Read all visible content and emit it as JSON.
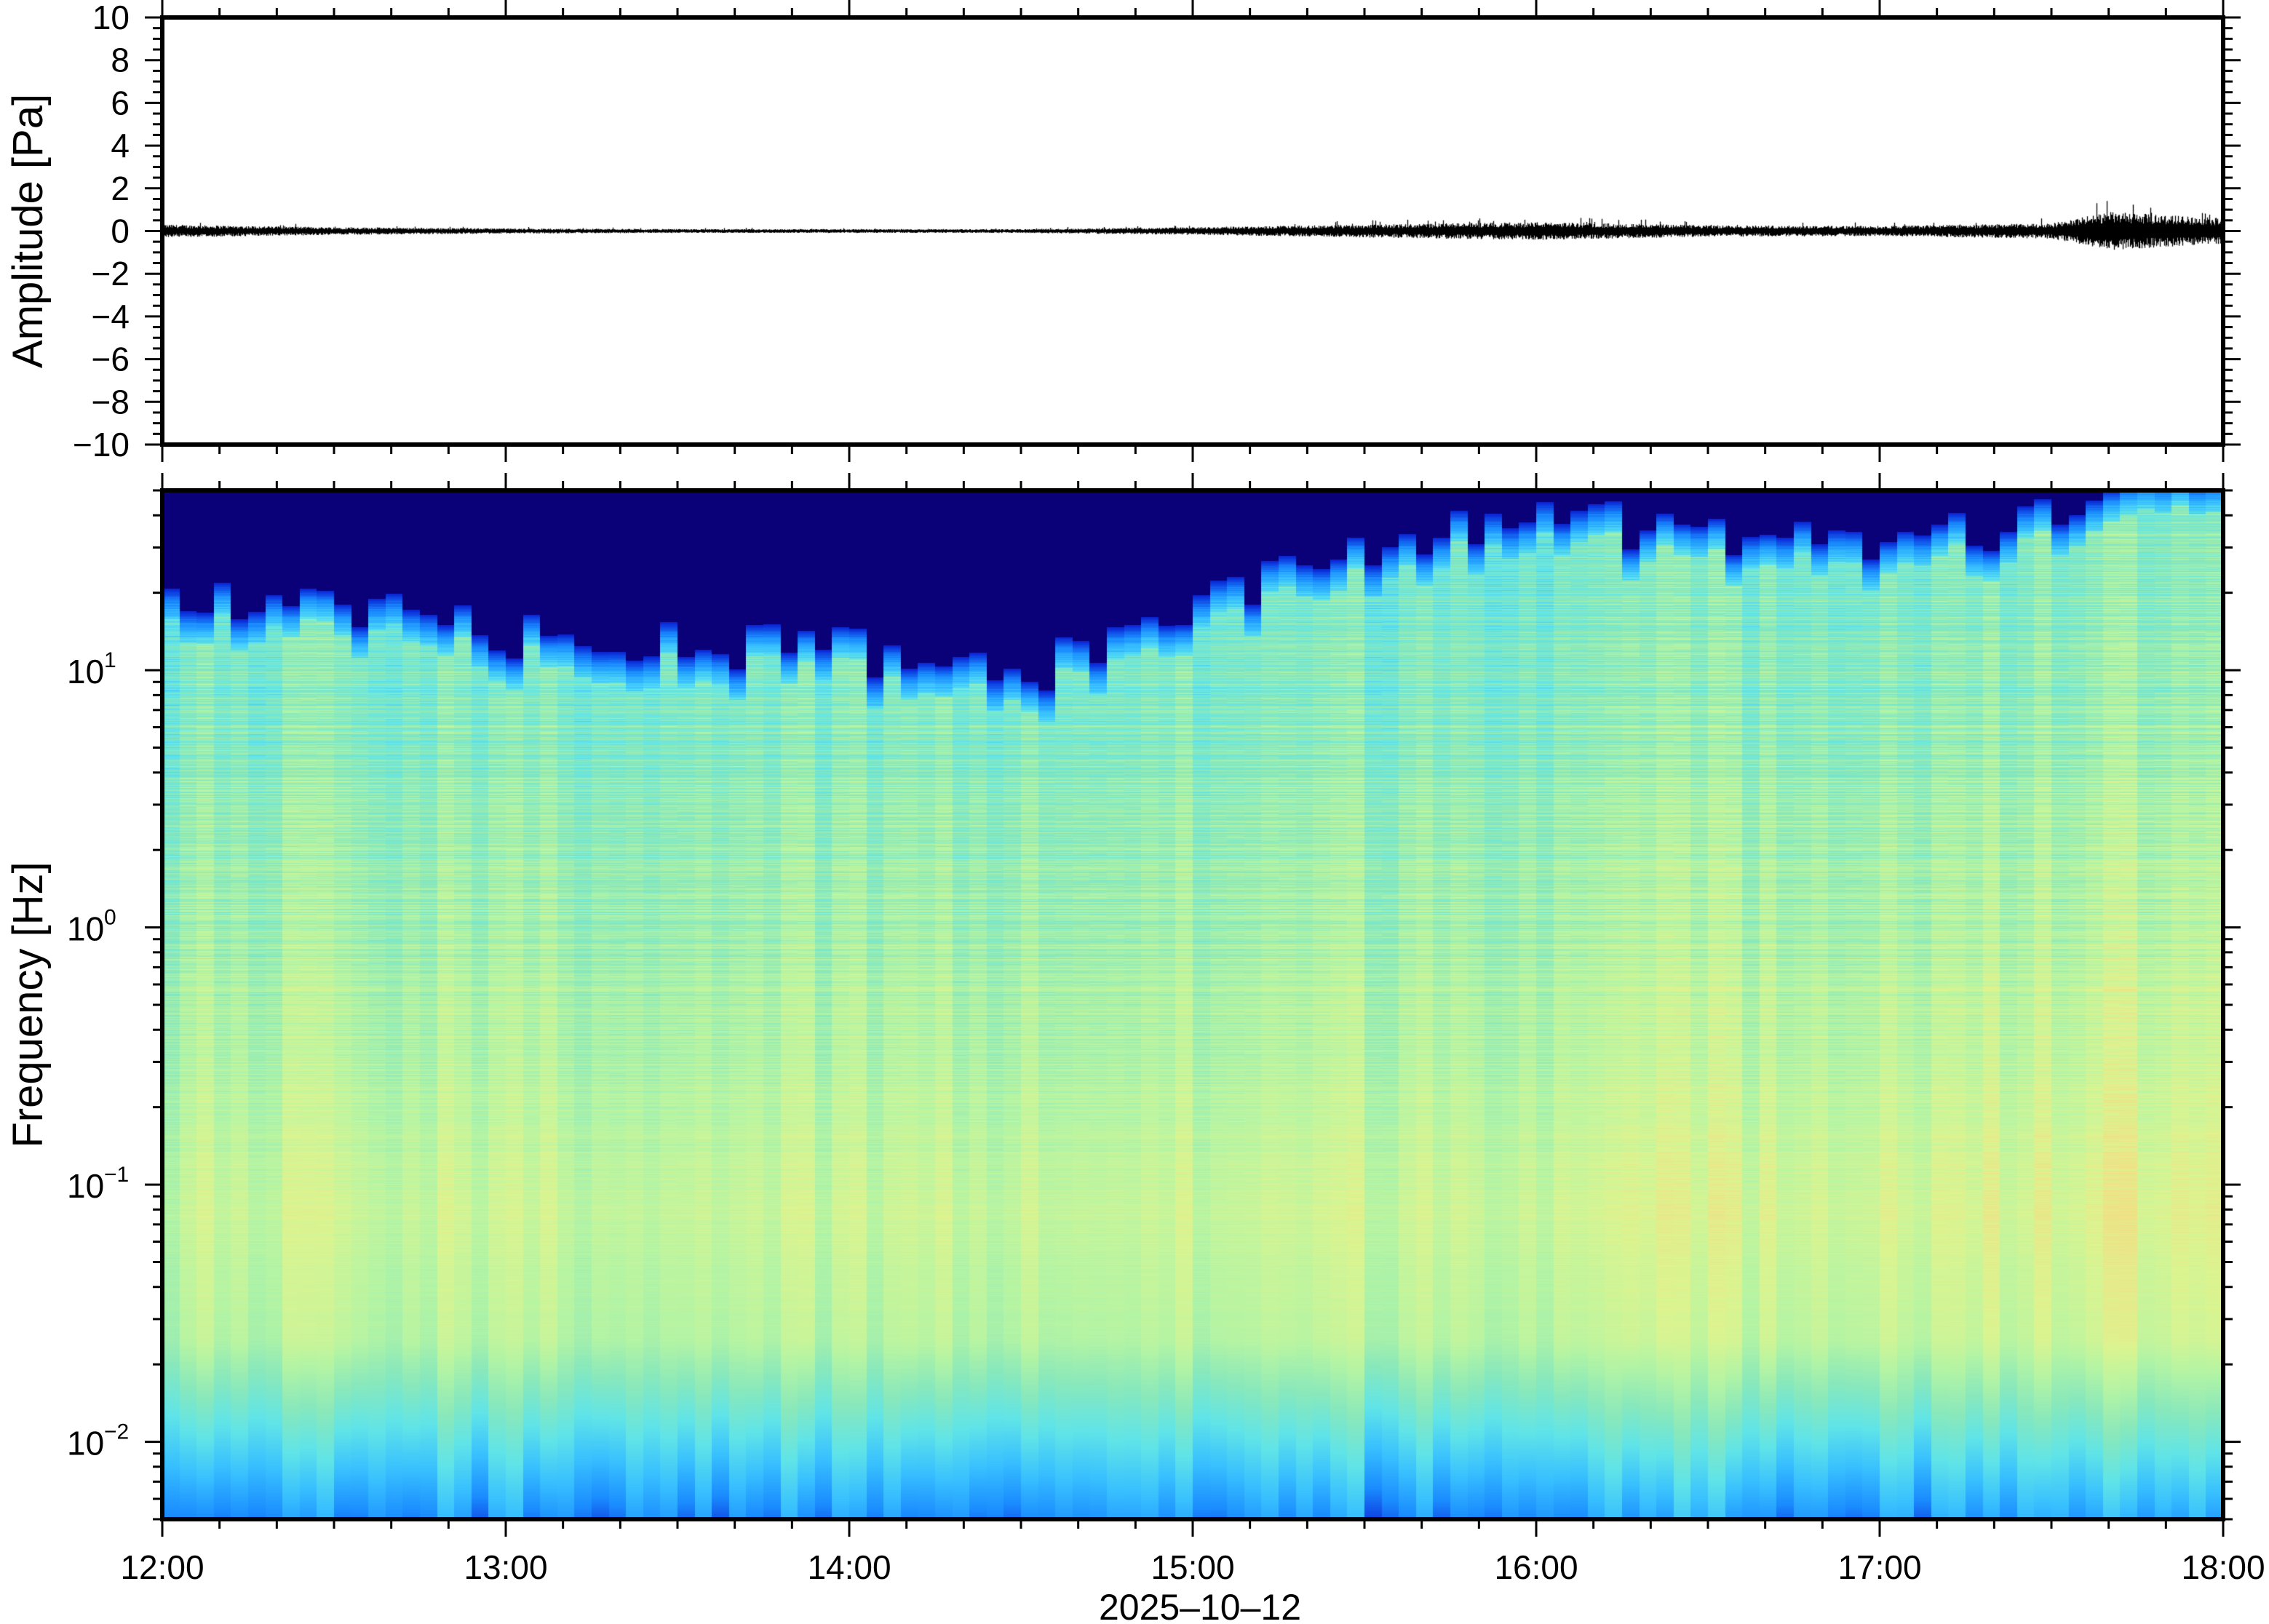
{
  "chart_data": [
    {
      "type": "line",
      "ylabel": "Amplitude [Pa]",
      "ylim": [
        -10,
        10
      ],
      "yticks": [
        "10",
        "8",
        "6",
        "4",
        "2",
        "0",
        "−2",
        "−4",
        "−6",
        "−8",
        "−10"
      ],
      "xlim": [
        "12:00",
        "18:00"
      ],
      "line_color": "#000000",
      "envelope_times": [
        "12:00",
        "12:30",
        "13:00",
        "13:30",
        "14:00",
        "14:30",
        "15:00",
        "15:30",
        "16:00",
        "16:30",
        "17:00",
        "17:30",
        "17:40",
        "18:00"
      ],
      "envelope_peak_pa": [
        0.5,
        0.3,
        0.2,
        0.15,
        0.15,
        0.15,
        0.3,
        0.5,
        0.7,
        0.45,
        0.4,
        0.6,
        1.5,
        1.0
      ]
    },
    {
      "type": "heatmap",
      "ylabel": "Frequency [Hz]",
      "xlabel": "2025–10–12",
      "yscale": "log",
      "ylim_hz": [
        0.005,
        50
      ],
      "yticks": [
        {
          "base": "10",
          "exp": "1"
        },
        {
          "base": "10",
          "exp": "0"
        },
        {
          "base": "10",
          "exp": "−1"
        },
        {
          "base": "10",
          "exp": "−2"
        }
      ],
      "xticks": [
        "12:00",
        "13:00",
        "14:00",
        "15:00",
        "16:00",
        "17:00",
        "18:00"
      ],
      "xlim": [
        "12:00",
        "18:00"
      ],
      "colormap": [
        "#0a0078",
        "#0a2ad8",
        "#1a8cff",
        "#38c0ff",
        "#60e4e8",
        "#88e8bc",
        "#b4f4a4",
        "#dcf490",
        "#f8d880",
        "#f4a868"
      ],
      "upper_cutoff_times": [
        "12:00",
        "12:30",
        "13:00",
        "13:30",
        "14:00",
        "14:30",
        "15:00",
        "15:30",
        "16:00",
        "16:30",
        "17:00",
        "17:30",
        "18:00"
      ],
      "upper_cutoff_hz": [
        15,
        13,
        10.5,
        9.5,
        9,
        7,
        13,
        22,
        31,
        24,
        23,
        30,
        40
      ],
      "energy_peak_band_hz": [
        0.03,
        0.3
      ]
    }
  ]
}
